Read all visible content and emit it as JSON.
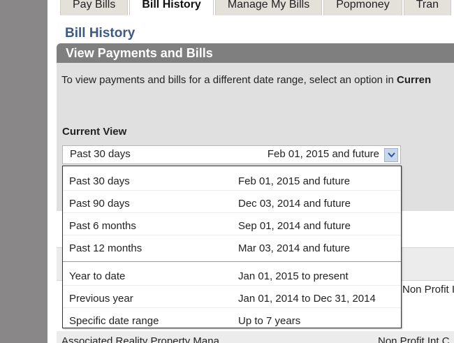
{
  "tabs": [
    {
      "label": "Pay Bills",
      "active": false
    },
    {
      "label": "Bill History",
      "active": true
    },
    {
      "label": "Manage My Bills",
      "active": false
    },
    {
      "label": "Popmoney",
      "active": false
    },
    {
      "label": "Tran",
      "active": false
    }
  ],
  "page_title": "Bill History",
  "section_header": "View Payments and Bills",
  "info": {
    "text": "To view payments and bills for a different date range, select an option in ",
    "bold": "Curren"
  },
  "current_view": {
    "label": "Current View",
    "selected_label": "Past 30 days",
    "selected_range": "Feb 01, 2015 and future"
  },
  "dropdown": {
    "group1": [
      {
        "label": "Past 30 days",
        "range": "Feb 01, 2015 and future"
      },
      {
        "label": "Past 90 days",
        "range": "Dec 03, 2014 and future"
      },
      {
        "label": "Past 6 months",
        "range": "Sep 01, 2014 and future"
      },
      {
        "label": "Past 12 months",
        "range": "Mar 03, 2014 and future"
      }
    ],
    "group2": [
      {
        "label": "Year to date",
        "range": "Jan 01, 2015 to present"
      },
      {
        "label": "Previous year",
        "range": "Jan 01, 2014 to Dec 31, 2014"
      },
      {
        "label": "Specific date range",
        "range": "Up to 7 years"
      }
    ]
  },
  "background_rows": {
    "row1_right": "Non Profit Int C",
    "row2_left": "Associated Reality Property Mana",
    "row2_right": "Non Profit Int C"
  },
  "colors": {
    "header_bg": "#7f7f7f",
    "title": "#3b5b86",
    "panel_bg": "#e0e0e0"
  }
}
